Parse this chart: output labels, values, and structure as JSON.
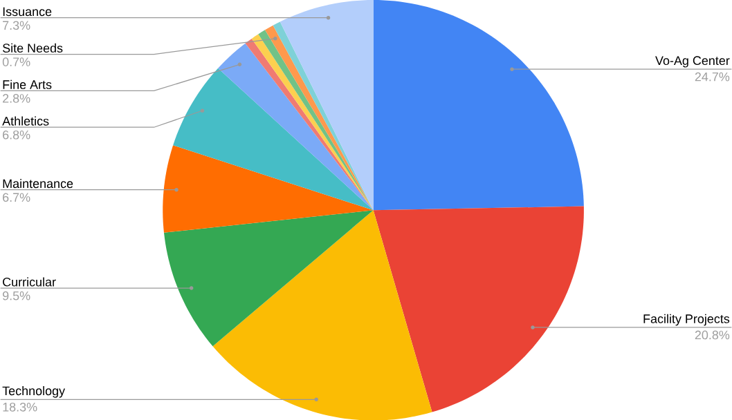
{
  "chart_data": {
    "type": "pie",
    "categories": [
      "Vo-Ag Center",
      "Facility Projects",
      "Technology",
      "Curricular",
      "Maintenance",
      "Athletics",
      "Fine Arts",
      null,
      null,
      null,
      "Site Needs",
      null,
      "Issuance"
    ],
    "values": [
      24.7,
      20.8,
      18.3,
      9.5,
      6.7,
      6.8,
      2.8,
      0.6,
      0.6,
      0.6,
      0.7,
      0.6,
      7.3
    ],
    "value_labels": [
      "24.7%",
      "20.8%",
      "18.3%",
      "9.5%",
      "6.7%",
      "6.8%",
      "2.8%",
      null,
      null,
      null,
      "0.7%",
      null,
      "7.3%"
    ],
    "colors": [
      "#4285f4",
      "#ea4335",
      "#fbbc04",
      "#34a853",
      "#ff6d01",
      "#46bdc6",
      "#7baaf7",
      "#f07b72",
      "#fcd04f",
      "#71c287",
      "#ff994d",
      "#7ed1d7",
      "#b3cefb"
    ]
  }
}
